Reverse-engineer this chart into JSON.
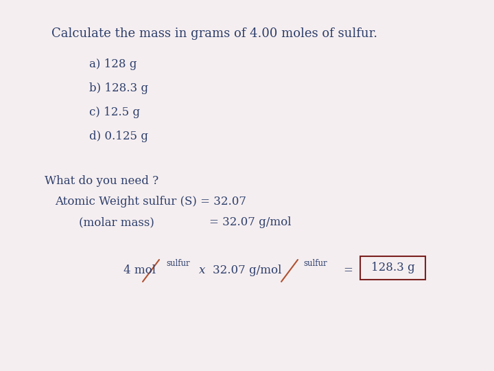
{
  "bg_color": "#f5eef0",
  "title": "Calculate the mass in grams of 4.00 moles of sulfur.",
  "choices": [
    "a) 128 g",
    "b) 128.3 g",
    "c) 12.5 g",
    "d) 0.125 g"
  ],
  "what_do_you_need": "What do you need ?",
  "atomic_weight_line1": "Atomic Weight sulfur (S) = 32.07",
  "atomic_weight_line2_part1": "(molar mass)",
  "atomic_weight_line2_part2": "= 32.07 g/mol",
  "answer_box": "128.3 g",
  "text_color": "#2c3e6b",
  "slash_color": "#b05030",
  "box_color": "#7a2020",
  "title_fontsize": 13,
  "body_fontsize": 12,
  "small_fontsize": 8.5
}
